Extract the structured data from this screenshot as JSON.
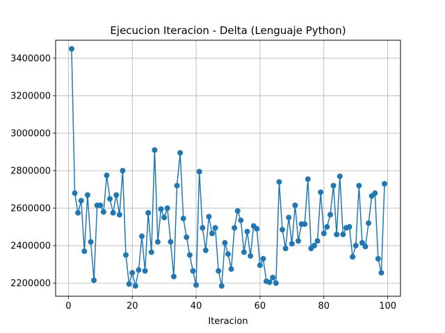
{
  "chart_data": {
    "type": "line",
    "title": "Ejecucion Iteracion - Delta  (Lenguaje Python)",
    "xlabel": "Iteracion",
    "ylabel": "",
    "xlim": [
      -4,
      104
    ],
    "ylim": [
      2130000,
      3496000
    ],
    "grid": true,
    "marker": "circle",
    "color": "#1f77b4",
    "xticks": [
      0,
      20,
      40,
      60,
      80,
      100
    ],
    "yticks": [
      2200000,
      2400000,
      2600000,
      2800000,
      3000000,
      3200000,
      3400000
    ],
    "xtick_labels": [
      "0",
      "20",
      "40",
      "60",
      "80",
      "100"
    ],
    "ytick_labels": [
      "2200000",
      "2400000",
      "2600000",
      "2800000",
      "3000000",
      "3200000",
      "3400000"
    ],
    "series": [
      {
        "x": [
          1,
          2,
          3,
          4,
          5,
          6,
          7,
          8,
          9,
          10,
          11,
          12,
          13,
          14,
          15,
          16,
          17,
          18,
          19,
          20,
          21,
          22,
          23,
          24,
          25,
          26,
          27,
          28,
          29,
          30,
          31,
          32,
          33,
          34,
          35,
          36,
          37,
          38,
          39,
          40,
          41,
          42,
          43,
          44,
          45,
          46,
          47,
          48,
          49,
          50,
          51,
          52,
          53,
          54,
          55,
          56,
          57,
          58,
          59,
          60,
          61,
          62,
          63,
          64,
          65,
          66,
          67,
          68,
          69,
          70,
          71,
          72,
          73,
          74,
          75,
          76,
          77,
          78,
          79,
          80,
          81,
          82,
          83,
          84,
          85,
          86,
          87,
          88,
          89,
          90,
          91,
          92,
          93,
          94,
          95,
          96,
          97,
          98,
          99
        ],
        "values": [
          3450000,
          2680000,
          2575000,
          2640000,
          2370000,
          2670000,
          2420000,
          2215000,
          2615000,
          2615000,
          2580000,
          2775000,
          2650000,
          2575000,
          2670000,
          2565000,
          2800000,
          2350000,
          2195000,
          2255000,
          2185000,
          2270000,
          2450000,
          2265000,
          2575000,
          2365000,
          2910000,
          2420000,
          2595000,
          2550000,
          2600000,
          2420000,
          2235000,
          2720000,
          2895000,
          2545000,
          2445000,
          2350000,
          2265000,
          2190000,
          2795000,
          2495000,
          2375000,
          2555000,
          2465000,
          2495000,
          2265000,
          2185000,
          2415000,
          2355000,
          2275000,
          2495000,
          2585000,
          2535000,
          2365000,
          2475000,
          2345000,
          2505000,
          2490000,
          2295000,
          2330000,
          2210000,
          2205000,
          2230000,
          2200000,
          2740000,
          2485000,
          2385000,
          2550000,
          2410000,
          2615000,
          2425000,
          2515000,
          2515000,
          2755000,
          2385000,
          2400000,
          2425000,
          2685000,
          2465000,
          2500000,
          2565000,
          2720000,
          2460000,
          2770000,
          2460000,
          2495000,
          2500000,
          2340000,
          2400000,
          2720000,
          2415000,
          2395000,
          2520000,
          2665000,
          2680000,
          2330000,
          2255000,
          2730000
        ]
      }
    ]
  }
}
